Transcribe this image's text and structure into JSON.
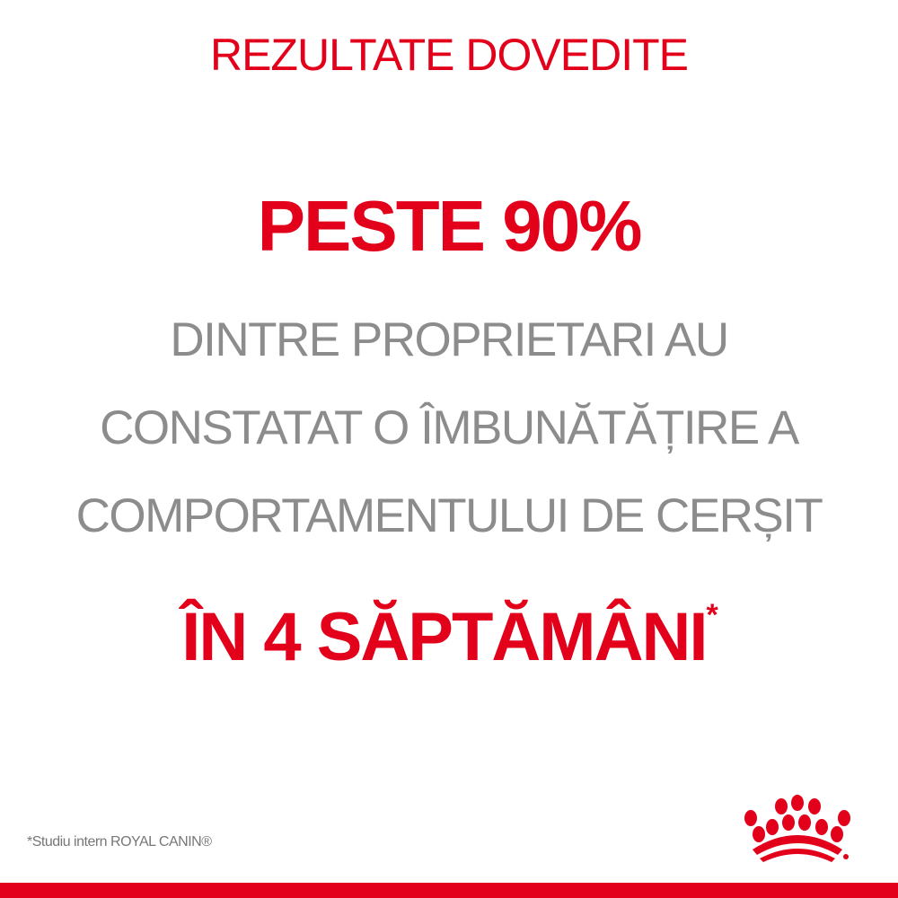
{
  "headline": "REZULTATE DOVEDITE",
  "stat": "PESTE 90%",
  "body_lines": [
    "DINTRE PROPRIETARI AU",
    "CONSTATAT O ÎMBUNĂTĂȚIRE A",
    "COMPORTAMENTULUI DE CERȘIT"
  ],
  "timeframe": "ÎN 4 SĂPTĂMÂNI",
  "asterisk": "*",
  "footnote": "*Studiu intern ROYAL CANIN®",
  "logo": {
    "brand": "ROYAL CANIN",
    "icon": "crown-icon"
  },
  "colors": {
    "accent": "#e2001a",
    "text_gray": "#8c8c8c"
  }
}
